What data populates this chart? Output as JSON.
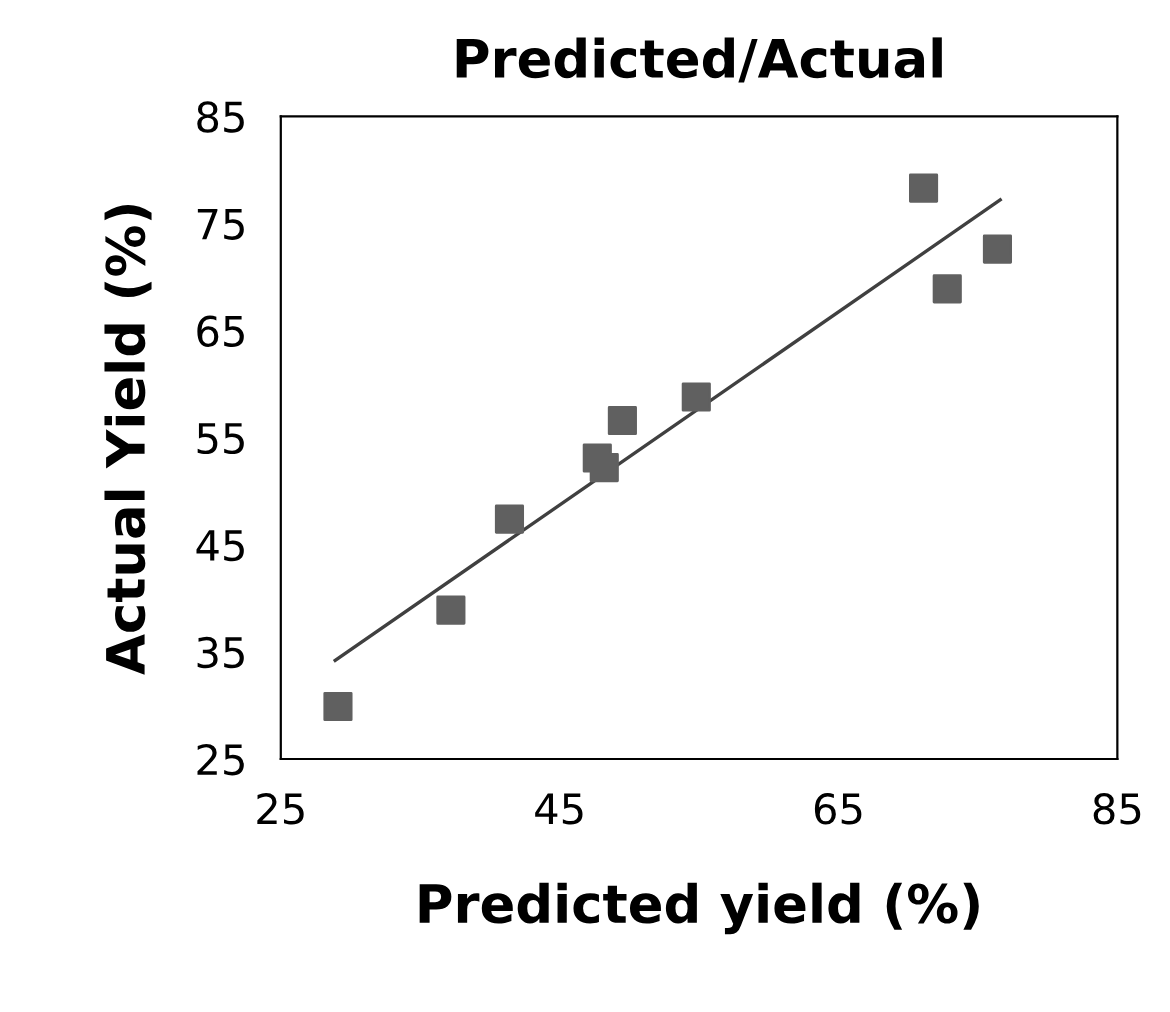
{
  "chart_data": {
    "type": "scatter",
    "title": "Predicted/Actual",
    "xlabel": "Predicted yield (%)",
    "ylabel": "Actual Yield (%)",
    "x": [
      29.1,
      37.2,
      41.4,
      47.7,
      48.2,
      49.5,
      54.8,
      71.1,
      72.8,
      76.4
    ],
    "series": [
      {
        "color": "#606060",
        "values": [
          29.9,
          38.9,
          47.4,
          53.1,
          52.2,
          56.6,
          58.8,
          78.3,
          68.9,
          72.6
        ]
      },
      {
        "type": "line",
        "marker": "none",
        "color": "#404040",
        "x": [
          28.9,
          76.6
        ],
        "values": [
          34.2,
          77.2
        ]
      }
    ],
    "marker": "square",
    "xlim": [
      25,
      85
    ],
    "ylim": [
      25,
      85
    ],
    "xticks": [
      25,
      45,
      65,
      85
    ],
    "yticks": [
      25,
      35,
      45,
      55,
      65,
      75,
      85
    ],
    "grid": false,
    "legend": false
  }
}
